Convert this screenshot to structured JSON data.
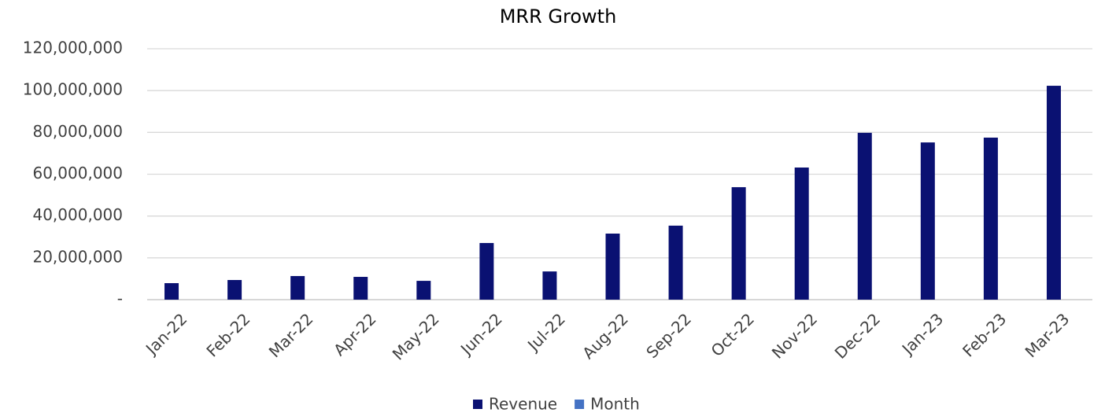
{
  "chart_data": {
    "type": "bar",
    "title": "MRR Growth",
    "categories": [
      "Jan-22",
      "Feb-22",
      "Mar-22",
      "Apr-22",
      "May-22",
      "Jun-22",
      "Jul-22",
      "Aug-22",
      "Sep-22",
      "Oct-22",
      "Nov-22",
      "Dec-22",
      "Jan-23",
      "Feb-23",
      "Mar-23"
    ],
    "series": [
      {
        "name": "Revenue",
        "color": "#0a1172",
        "values": [
          7900000,
          9400000,
          11300000,
          10900000,
          9000000,
          27100000,
          13500000,
          31600000,
          35400000,
          53800000,
          63200000,
          79800000,
          75200000,
          77500000,
          102300000
        ]
      },
      {
        "name": "Month",
        "color": "#4472c4",
        "values": [
          null,
          null,
          null,
          null,
          null,
          null,
          null,
          null,
          null,
          null,
          null,
          null,
          null,
          null,
          null
        ]
      }
    ],
    "ylim": [
      0,
      120000000
    ],
    "yticks": [
      {
        "value": 0,
        "label": "-"
      },
      {
        "value": 20000000,
        "label": "20,000,000"
      },
      {
        "value": 40000000,
        "label": "40,000,000"
      },
      {
        "value": 60000000,
        "label": "60,000,000"
      },
      {
        "value": 80000000,
        "label": "80,000,000"
      },
      {
        "value": 100000000,
        "label": "100,000,000"
      },
      {
        "value": 120000000,
        "label": "120,000,000"
      }
    ],
    "grid": true,
    "legend": "bottom"
  }
}
